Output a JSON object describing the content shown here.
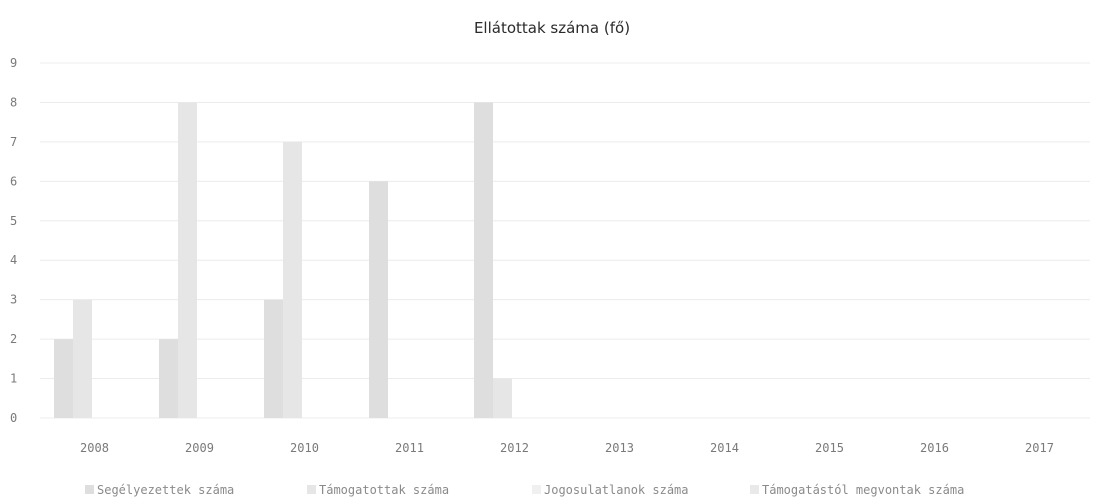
{
  "chart_data": {
    "type": "bar",
    "title": "Ellátottak száma (fő)",
    "xlabel": "",
    "ylabel": "",
    "categories": [
      "2008",
      "2009",
      "2010",
      "2011",
      "2012",
      "2013",
      "2014",
      "2015",
      "2016",
      "2017"
    ],
    "ylim": [
      0,
      9
    ],
    "yticks": [
      "0",
      "1",
      "2",
      "3",
      "4",
      "5",
      "6",
      "7",
      "8",
      "9"
    ],
    "grid": true,
    "legend_position": "bottom",
    "series": [
      {
        "name": "Segélyezettek száma",
        "color": "#dedede",
        "values": [
          2,
          2,
          3,
          6,
          8,
          0,
          0,
          0,
          0,
          0
        ]
      },
      {
        "name": "Támogatottak száma",
        "color": "#e6e6e6",
        "values": [
          3,
          8,
          7,
          0,
          1,
          0,
          0,
          0,
          0,
          0
        ]
      },
      {
        "name": "Jogosulatlanok száma",
        "color": "#f0f0f0",
        "values": [
          0,
          0,
          0,
          0,
          0,
          0,
          0,
          0,
          0,
          0
        ]
      },
      {
        "name": "Támogatástól megvontak száma",
        "color": "#e9e9e9",
        "values": [
          0,
          0,
          0,
          0,
          0,
          0,
          0,
          0,
          0,
          0
        ]
      }
    ]
  }
}
